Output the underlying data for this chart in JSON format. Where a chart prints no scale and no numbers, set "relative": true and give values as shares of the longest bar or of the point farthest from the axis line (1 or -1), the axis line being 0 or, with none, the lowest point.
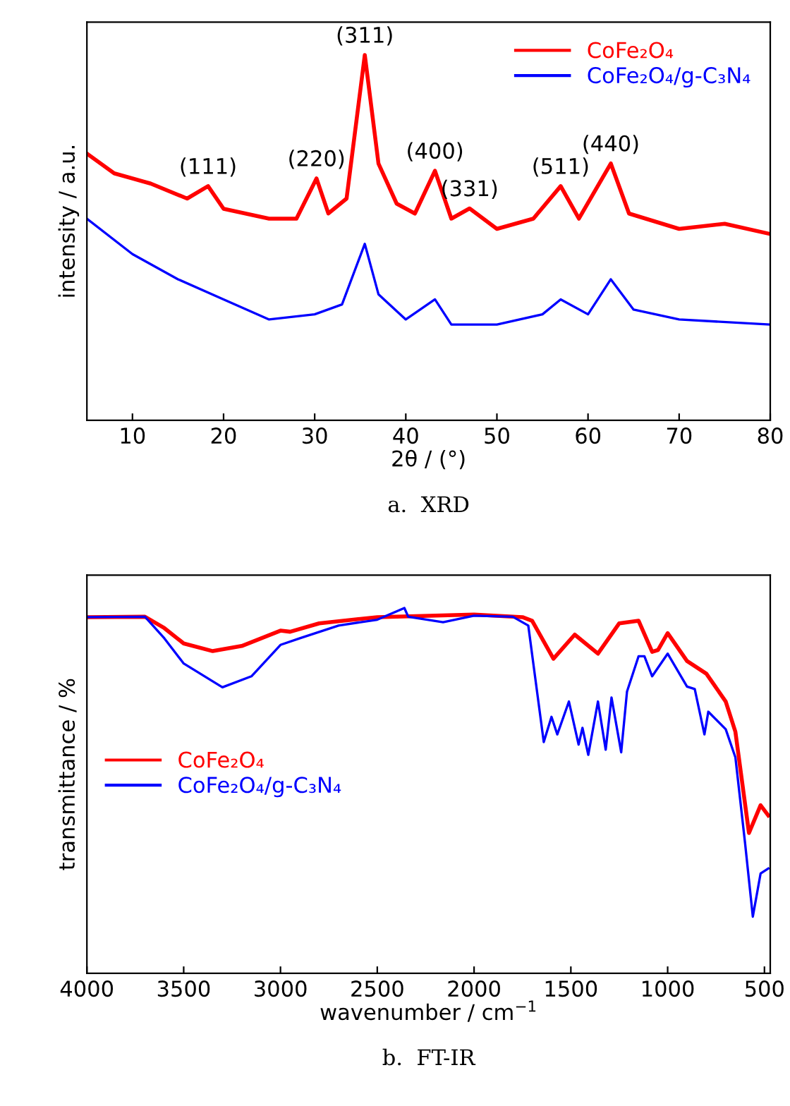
{
  "chart_data": [
    {
      "type": "line",
      "title": "a.  XRD",
      "xlabel": "2θ / (°)",
      "ylabel": "intensity / a.u.",
      "relative": true,
      "xlim": [
        5,
        80
      ],
      "xticks": [
        10,
        20,
        30,
        40,
        50,
        60,
        70,
        80
      ],
      "tick_labels": "x",
      "legend": "top right",
      "grid": false,
      "series": [
        {
          "name": "CoFe₂O₄",
          "color": "#ff0000",
          "x": [
            5,
            8,
            12,
            16,
            18.3,
            20,
            25,
            28,
            30.2,
            31.5,
            33.5,
            35.5,
            37,
            39,
            41,
            43.2,
            45,
            47,
            50,
            54,
            57,
            59,
            62.5,
            64.5,
            70,
            75,
            80
          ],
          "values": [
            0.73,
            0.676,
            0.648,
            0.607,
            0.641,
            0.579,
            0.552,
            0.552,
            0.662,
            0.566,
            0.607,
            1.0,
            0.703,
            0.593,
            0.566,
            0.683,
            0.552,
            0.58,
            0.524,
            0.552,
            0.641,
            0.552,
            0.703,
            0.566,
            0.524,
            0.538,
            0.51
          ]
        },
        {
          "name": "CoFe₂O₄/g-C₃N₄",
          "color": "#0000ff",
          "x": [
            5,
            10,
            15,
            20,
            25,
            30,
            33,
            35.5,
            37,
            40,
            43.2,
            45,
            50,
            55,
            57,
            60,
            62.5,
            65,
            70,
            80
          ],
          "values": [
            0.552,
            0.455,
            0.386,
            0.331,
            0.276,
            0.29,
            0.317,
            0.483,
            0.345,
            0.276,
            0.331,
            0.262,
            0.262,
            0.29,
            0.331,
            0.29,
            0.386,
            0.303,
            0.276,
            0.262
          ]
        }
      ],
      "annotations": [
        {
          "text": "(111)",
          "x": 18.3,
          "y": 0.641
        },
        {
          "text": "(220)",
          "x": 30.2,
          "y": 0.662
        },
        {
          "text": "(311)",
          "x": 35.5,
          "y": 1.0
        },
        {
          "text": "(400)",
          "x": 43.2,
          "y": 0.683
        },
        {
          "text": "(331)",
          "x": 47,
          "y": 0.58
        },
        {
          "text": "(511)",
          "x": 57,
          "y": 0.641
        },
        {
          "text": "(440)",
          "x": 62.5,
          "y": 0.703
        }
      ]
    },
    {
      "type": "line",
      "title": "b.  FT-IR",
      "xlabel": "wavenumber / cm$^{−1}$",
      "ylabel": "transmittance / %",
      "relative": true,
      "xlim": [
        4000,
        470
      ],
      "xticks": [
        4000,
        3500,
        3000,
        2500,
        2000,
        1500,
        1000,
        500
      ],
      "tick_labels": "x",
      "legend": "left",
      "grid": false,
      "series": [
        {
          "name": "CoFe₂O₄",
          "color": "#ff0000",
          "x": [
            4000,
            3700,
            3600,
            3500,
            3350,
            3200,
            3000,
            2950,
            2800,
            2500,
            2000,
            1750,
            1700,
            1590,
            1480,
            1360,
            1250,
            1150,
            1080,
            1050,
            1000,
            900,
            800,
            700,
            650,
            580,
            520,
            480
          ],
          "values": [
            0.975,
            0.976,
            0.945,
            0.903,
            0.882,
            0.896,
            0.938,
            0.935,
            0.958,
            0.975,
            0.982,
            0.975,
            0.965,
            0.861,
            0.927,
            0.875,
            0.958,
            0.965,
            0.88,
            0.885,
            0.931,
            0.855,
            0.82,
            0.744,
            0.661,
            0.384,
            0.46,
            0.432
          ]
        },
        {
          "name": "CoFe₂O₄/g-C₃N₄",
          "color": "#0000ff",
          "x": [
            4000,
            3700,
            3600,
            3500,
            3300,
            3150,
            3000,
            2900,
            2700,
            2500,
            2360,
            2340,
            2160,
            2000,
            1800,
            1720,
            1640,
            1600,
            1570,
            1510,
            1460,
            1440,
            1410,
            1360,
            1320,
            1290,
            1240,
            1210,
            1150,
            1120,
            1080,
            1000,
            900,
            860,
            810,
            790,
            700,
            650,
            600,
            560,
            520,
            480
          ],
          "values": [
            0.975,
            0.976,
            0.917,
            0.848,
            0.783,
            0.813,
            0.899,
            0.917,
            0.952,
            0.968,
            1.0,
            0.976,
            0.961,
            0.979,
            0.976,
            0.952,
            0.633,
            0.702,
            0.654,
            0.744,
            0.626,
            0.672,
            0.598,
            0.744,
            0.612,
            0.755,
            0.605,
            0.771,
            0.868,
            0.868,
            0.813,
            0.875,
            0.785,
            0.778,
            0.654,
            0.716,
            0.668,
            0.591,
            0.356,
            0.155,
            0.273,
            0.287
          ]
        }
      ]
    }
  ]
}
